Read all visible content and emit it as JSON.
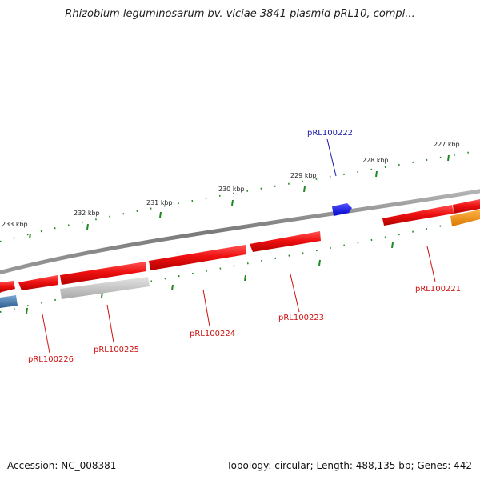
{
  "title": "Rhizobium leguminosarum bv. viciae 3841 plasmid pRL10, compl...",
  "footer": {
    "accession": "Accession: NC_008381",
    "summary": "Topology: circular; Length: 488,135 bp; Genes: 442"
  },
  "colors": {
    "forward_gene": "#ee1111",
    "forward_gene_light": "#ff6666",
    "highlight_gene": "#1a1aee",
    "gray_gene": "#bdbdbd",
    "orange_gene": "#f5900c",
    "steel_gene": "#4a7fb5",
    "backbone": "#8a8a8a",
    "tick": "#228822",
    "label_red": "#cc1111",
    "label_blue": "#1a1aaa"
  },
  "scale_labels": [
    "233 kbp",
    "232 kbp",
    "231 kbp",
    "230 kbp",
    "229 kbp",
    "228 kbp",
    "227 kbp"
  ],
  "gene_labels": [
    {
      "name": "pRL100222",
      "color": "blue"
    },
    {
      "name": "pRL100221",
      "color": "red"
    },
    {
      "name": "pRL100223",
      "color": "red"
    },
    {
      "name": "pRL100224",
      "color": "red"
    },
    {
      "name": "pRL100225",
      "color": "red"
    },
    {
      "name": "pRL100226",
      "color": "red"
    }
  ]
}
